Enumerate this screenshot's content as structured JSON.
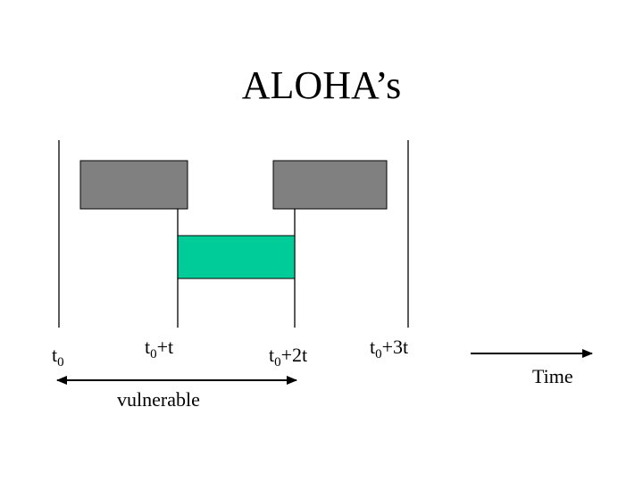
{
  "title": "ALOHA’s",
  "time_label": "Time",
  "vulnerable_label": "vulnerable",
  "ticks": [
    {
      "base": "t",
      "sub": "0",
      "suffix": ""
    },
    {
      "base": "t",
      "sub": "0",
      "suffix": "+t"
    },
    {
      "base": "t",
      "sub": "0",
      "suffix": "+2t"
    },
    {
      "base": "t",
      "sub": "0",
      "suffix": "+3t"
    }
  ],
  "colors": {
    "frame_fill": "#808080",
    "frame_stroke": "#000000",
    "packet_fill": "#00cc99",
    "line": "#000000"
  }
}
